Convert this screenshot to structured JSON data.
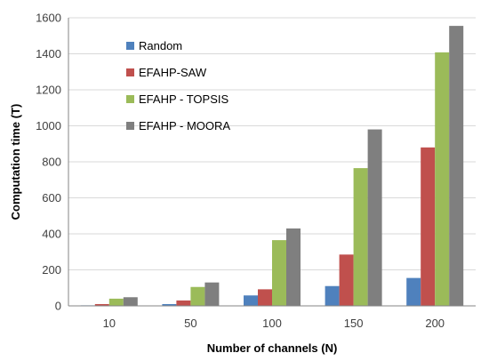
{
  "chart_data": {
    "type": "bar",
    "title": "",
    "xlabel": "Number of channels (N)",
    "ylabel": "Computation time (T)",
    "categories": [
      "10",
      "50",
      "100",
      "150",
      "200"
    ],
    "ylim": [
      0,
      1600
    ],
    "yticks": [
      0,
      200,
      400,
      600,
      800,
      1000,
      1200,
      1400,
      1600
    ],
    "grid": true,
    "legend_position": "top-left, inside plot",
    "series": [
      {
        "name": "Random",
        "color": "#4F81BD",
        "values": [
          3,
          10,
          58,
          110,
          155
        ]
      },
      {
        "name": "EFAHP-SAW",
        "color": "#C0504D",
        "values": [
          10,
          30,
          92,
          285,
          880
        ]
      },
      {
        "name": "EFAHP - TOPSIS",
        "color": "#9BBB59",
        "values": [
          40,
          105,
          365,
          765,
          1408
        ]
      },
      {
        "name": "EFAHP - MOORA",
        "color": "#7F7F7F",
        "values": [
          48,
          130,
          430,
          980,
          1555
        ]
      }
    ]
  }
}
